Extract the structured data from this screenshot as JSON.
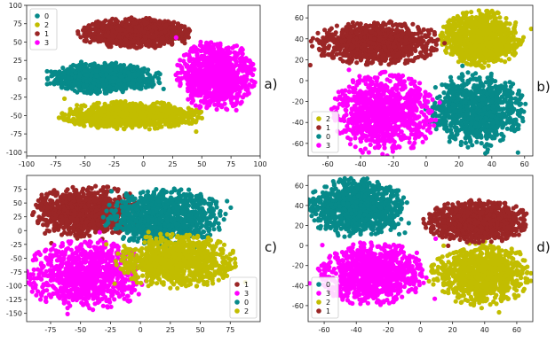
{
  "colors": {
    "0": "#078a8a",
    "1": "#9b2626",
    "2": "#c2bd00",
    "3": "#ff00ff"
  },
  "chart_data": [
    {
      "type": "scatter",
      "panel_label": "a)",
      "xlim": [
        -100,
        100
      ],
      "ylim": [
        -105,
        100
      ],
      "xticks": [
        -100,
        -75,
        -50,
        -25,
        0,
        25,
        50,
        75,
        100
      ],
      "yticks": [
        -100,
        -75,
        -50,
        -25,
        0,
        25,
        50,
        75,
        100
      ],
      "grid": false,
      "legend_position": "top-left",
      "legend": [
        "0",
        "2",
        "1",
        "3"
      ],
      "series": [
        {
          "name": "0",
          "clusters": [
            {
              "cx": -35,
              "cy": 1,
              "rx": 48,
              "ry": 20
            }
          ]
        },
        {
          "name": "2",
          "clusters": [
            {
              "cx": -10,
              "cy": -50,
              "rx": 60,
              "ry": 18
            }
          ]
        },
        {
          "name": "1",
          "clusters": [
            {
              "cx": -8,
              "cy": 62,
              "rx": 46,
              "ry": 20
            }
          ]
        },
        {
          "name": "3",
          "clusters": [
            {
              "cx": 62,
              "cy": 5,
              "rx": 32,
              "ry": 46
            }
          ]
        }
      ]
    },
    {
      "type": "scatter",
      "panel_label": "b)",
      "xlim": [
        -72,
        65
      ],
      "ylim": [
        -72,
        72
      ],
      "xticks": [
        -60,
        -40,
        -20,
        0,
        20,
        40,
        60
      ],
      "yticks": [
        -60,
        -40,
        -20,
        0,
        20,
        40,
        60
      ],
      "grid": false,
      "legend_position": "bottom-left",
      "legend": [
        "2",
        "1",
        "0",
        "3"
      ],
      "series": [
        {
          "name": "2",
          "clusters": [
            {
              "cx": 34,
              "cy": 40,
              "rx": 24,
              "ry": 26
            }
          ]
        },
        {
          "name": "1",
          "clusters": [
            {
              "cx": -30,
              "cy": 36,
              "rx": 38,
              "ry": 20
            }
          ]
        },
        {
          "name": "0",
          "clusters": [
            {
              "cx": 30,
              "cy": -28,
              "rx": 30,
              "ry": 34
            }
          ]
        },
        {
          "name": "3",
          "clusters": [
            {
              "cx": -26,
              "cy": -32,
              "rx": 30,
              "ry": 38
            }
          ]
        }
      ]
    },
    {
      "type": "scatter",
      "panel_label": "c)",
      "xlim": [
        -95,
        100
      ],
      "ylim": [
        -165,
        100
      ],
      "xticks": [
        -75,
        -50,
        -25,
        0,
        25,
        50,
        75
      ],
      "yticks": [
        -150,
        -125,
        -100,
        -75,
        -50,
        -25,
        0,
        25,
        50,
        75
      ],
      "grid": false,
      "legend_position": "bottom-right",
      "legend": [
        "1",
        "3",
        "0",
        "2"
      ],
      "series": [
        {
          "name": "1",
          "clusters": [
            {
              "cx": -45,
              "cy": 35,
              "rx": 45,
              "ry": 45
            }
          ]
        },
        {
          "name": "3",
          "clusters": [
            {
              "cx": -45,
              "cy": -80,
              "rx": 50,
              "ry": 60
            }
          ]
        },
        {
          "name": "0",
          "clusters": [
            {
              "cx": 20,
              "cy": 25,
              "rx": 48,
              "ry": 50
            }
          ]
        },
        {
          "name": "2",
          "clusters": [
            {
              "cx": 30,
              "cy": -55,
              "rx": 48,
              "ry": 48
            }
          ]
        }
      ]
    },
    {
      "type": "scatter",
      "panel_label": "d)",
      "xlim": [
        -70,
        70
      ],
      "ylim": [
        -76,
        70
      ],
      "xticks": [
        -60,
        -40,
        -20,
        0,
        20,
        40,
        60
      ],
      "yticks": [
        -60,
        -40,
        -20,
        0,
        20,
        40,
        60
      ],
      "grid": false,
      "legend_position": "bottom-left",
      "legend": [
        "0",
        "3",
        "2",
        "1"
      ],
      "series": [
        {
          "name": "0",
          "clusters": [
            {
              "cx": -40,
              "cy": 38,
              "rx": 30,
              "ry": 28
            }
          ]
        },
        {
          "name": "3",
          "clusters": [
            {
              "cx": -30,
              "cy": -28,
              "rx": 32,
              "ry": 30
            }
          ]
        },
        {
          "name": "2",
          "clusters": [
            {
              "cx": 38,
              "cy": -28,
              "rx": 30,
              "ry": 30
            }
          ]
        },
        {
          "name": "1",
          "clusters": [
            {
              "cx": 36,
              "cy": 24,
              "rx": 32,
              "ry": 20
            }
          ]
        }
      ]
    }
  ]
}
